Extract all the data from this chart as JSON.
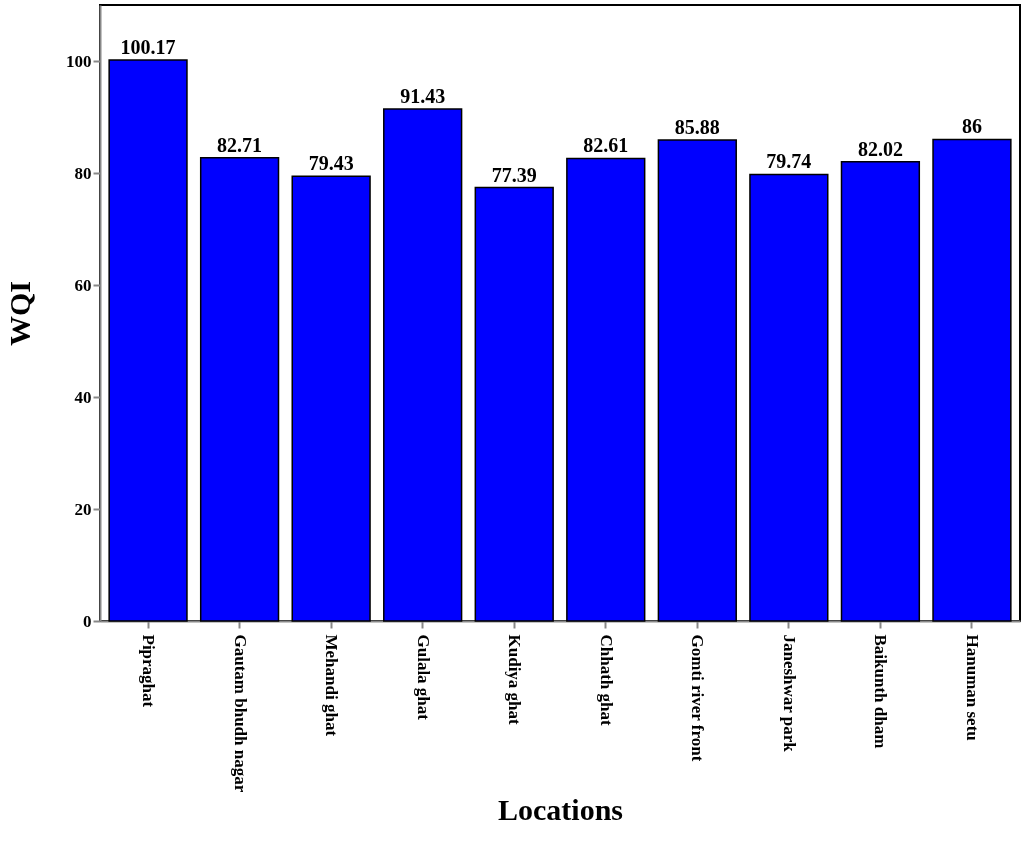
{
  "chart_data": {
    "type": "bar",
    "xlabel": "Locations",
    "ylabel": "WQI",
    "categories": [
      "Pipraghat",
      "Gautam bhudh nagar",
      "Mehandi ghat",
      "Gulala ghat",
      "Kudiya ghat",
      "Chhath ghat",
      "Gomti river front",
      "Janeshwar park",
      "Baikunth dham",
      "Hanuman setu"
    ],
    "values": [
      100.17,
      82.71,
      79.43,
      91.43,
      77.39,
      82.61,
      85.88,
      79.74,
      82.02,
      86
    ],
    "color": "#0000ff",
    "ylim": [
      0,
      110
    ],
    "yticks": [
      0,
      20,
      40,
      60,
      80,
      100
    ],
    "data_labels": true,
    "grid": false
  }
}
